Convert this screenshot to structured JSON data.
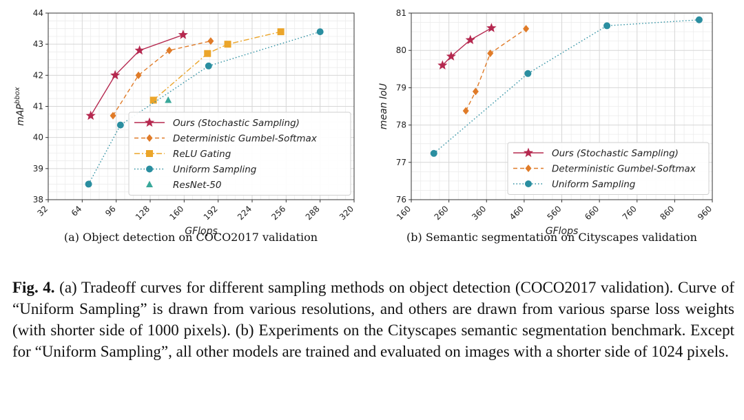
{
  "charts": [
    {
      "caption": "(a) Object detection on COCO2017 validation",
      "chart_data": {
        "type": "line",
        "xlabel": "GFlops",
        "ylabel": "mAP",
        "ylabel_sup": "bbox",
        "xlim": [
          32,
          320
        ],
        "ylim": [
          38,
          44
        ],
        "xticks": [
          "32",
          "64",
          "96",
          "128",
          "160",
          "192",
          "224",
          "256",
          "288",
          "320"
        ],
        "yticks": [
          "38",
          "39",
          "40",
          "41",
          "42",
          "43",
          "44"
        ],
        "grid": true,
        "legend_position": "lower-right",
        "series": [
          {
            "name": "Ours (Stochastic Sampling)",
            "color": "#b5284f",
            "style": "solid",
            "marker": "star",
            "x": [
              72,
              95,
              118,
              159
            ],
            "y": [
              40.7,
              42.0,
              42.8,
              43.3
            ]
          },
          {
            "name": "Deterministic Gumbel-Softmax",
            "color": "#e07b28",
            "style": "dashed",
            "marker": "diamond",
            "x": [
              93,
              117,
              146,
              185
            ],
            "y": [
              40.7,
              42.0,
              42.8,
              43.1
            ]
          },
          {
            "name": "ReLU Gating",
            "color": "#eba52a",
            "style": "dashdot",
            "marker": "square",
            "x": [
              131,
              182,
              201,
              251
            ],
            "y": [
              41.2,
              42.7,
              43.0,
              43.4
            ]
          },
          {
            "name": "Uniform Sampling",
            "color": "#2a8ea0",
            "style": "dotted",
            "marker": "circle",
            "x": [
              70,
              100,
              183,
              288
            ],
            "y": [
              38.5,
              40.4,
              42.3,
              43.4
            ]
          },
          {
            "name": "ResNet-50",
            "color": "#3aa89a",
            "style": "none",
            "marker": "triangle",
            "x": [
              145
            ],
            "y": [
              41.2
            ]
          }
        ]
      }
    },
    {
      "caption": "(b) Semantic segmentation on Cityscapes validation",
      "chart_data": {
        "type": "line",
        "xlabel": "GFlops",
        "ylabel": "mean IoU",
        "xlim": [
          160,
          960
        ],
        "ylim": [
          76,
          81
        ],
        "xticks": [
          "160",
          "260",
          "360",
          "460",
          "560",
          "660",
          "760",
          "860",
          "960"
        ],
        "yticks": [
          "76",
          "77",
          "78",
          "79",
          "80",
          "81"
        ],
        "grid": true,
        "legend_position": "lower-right",
        "series": [
          {
            "name": "Ours (Stochastic Sampling)",
            "color": "#b5284f",
            "style": "solid",
            "marker": "star",
            "x": [
              243,
              266,
              317,
              373
            ],
            "y": [
              79.6,
              79.84,
              80.28,
              80.6
            ]
          },
          {
            "name": "Deterministic Gumbel-Softmax",
            "color": "#e07b28",
            "style": "dashed",
            "marker": "diamond",
            "x": [
              305,
              331,
              370,
              465
            ],
            "y": [
              78.38,
              78.9,
              79.92,
              80.58
            ]
          },
          {
            "name": "Uniform Sampling",
            "color": "#2a8ea0",
            "style": "dotted",
            "marker": "circle",
            "x": [
              220,
              470,
              680,
              925
            ],
            "y": [
              77.24,
              79.38,
              80.66,
              80.82
            ]
          }
        ]
      }
    }
  ],
  "caption": {
    "label": "Fig. 4.",
    "text": "(a) Tradeoff curves for different sampling methods on object detection (COCO2017 validation). Curve of “Uniform Sampling” is drawn from various resolutions, and others are drawn from various sparse loss weights (with shorter side of 1000 pixels). (b) Experiments on the Cityscapes semantic segmentation benchmark. Except for “Uniform Sampling”, all other models are trained and evaluated on images with a shorter side of 1024 pixels."
  }
}
